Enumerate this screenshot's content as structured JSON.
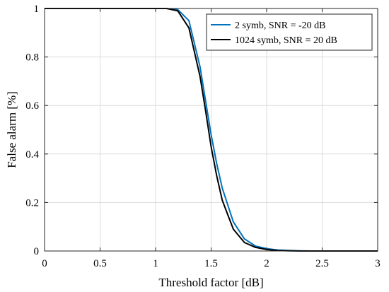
{
  "chart_data": {
    "type": "line",
    "title": "",
    "xlabel": "Threshold factor [dB]",
    "ylabel": "False alarm [%]",
    "xlim": [
      0,
      3
    ],
    "ylim": [
      0,
      1
    ],
    "xticks": [
      "0",
      "0.5",
      "1",
      "1.5",
      "2",
      "2.5",
      "3"
    ],
    "yticks": [
      "0",
      "0.2",
      "0.4",
      "0.6",
      "0.8",
      "1"
    ],
    "grid": true,
    "legend": "top-right",
    "series": [
      {
        "name": "2 symb, SNR = -20 dB",
        "color": "#0072BD",
        "x": [
          0,
          1.0,
          1.1,
          1.2,
          1.3,
          1.4,
          1.45,
          1.5,
          1.55,
          1.6,
          1.65,
          1.7,
          1.8,
          1.9,
          2.0,
          2.1,
          2.2,
          2.3,
          2.4,
          3.0
        ],
        "y": [
          1,
          1,
          1,
          0.995,
          0.95,
          0.76,
          0.62,
          0.48,
          0.36,
          0.26,
          0.19,
          0.12,
          0.05,
          0.02,
          0.01,
          0.004,
          0.002,
          0.001,
          0,
          0
        ]
      },
      {
        "name": "1024 symb, SNR = 20 dB",
        "color": "#000000",
        "x": [
          0,
          1.0,
          1.1,
          1.2,
          1.3,
          1.4,
          1.45,
          1.5,
          1.55,
          1.6,
          1.65,
          1.7,
          1.8,
          1.9,
          2.0,
          2.1,
          2.2,
          2.3,
          2.4,
          3.0
        ],
        "y": [
          1,
          1,
          1,
          0.99,
          0.92,
          0.72,
          0.58,
          0.43,
          0.31,
          0.21,
          0.15,
          0.09,
          0.035,
          0.015,
          0.006,
          0.002,
          0.001,
          0,
          0,
          0
        ]
      }
    ]
  }
}
